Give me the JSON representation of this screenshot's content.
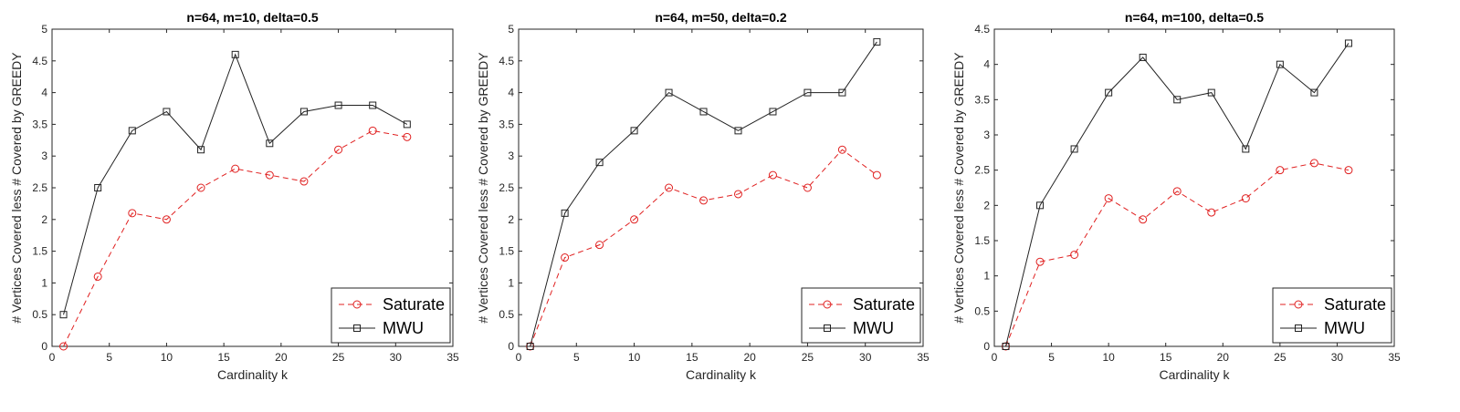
{
  "chart_data": [
    {
      "type": "line",
      "title": "n=64, m=10, delta=0.5",
      "xlabel": "Cardinality k",
      "ylabel": "# Vertices Covered less # Covered by GREEDY",
      "xlim": [
        0,
        35
      ],
      "ylim": [
        0,
        5
      ],
      "xticks": [
        0,
        5,
        10,
        15,
        20,
        25,
        30,
        35
      ],
      "yticks": [
        0,
        0.5,
        1,
        1.5,
        2,
        2.5,
        3,
        3.5,
        4,
        4.5,
        5
      ],
      "x": [
        1,
        4,
        7,
        10,
        13,
        16,
        19,
        22,
        25,
        28,
        31
      ],
      "legend_position": "bottom-right",
      "series": [
        {
          "name": "Saturate",
          "values": [
            0,
            1.1,
            2.1,
            2.0,
            2.5,
            2.8,
            2.7,
            2.6,
            3.1,
            3.4,
            3.3
          ],
          "color": "#e02020",
          "style": "dashed",
          "marker": "circle"
        },
        {
          "name": "MWU",
          "values": [
            0.5,
            2.5,
            3.4,
            3.7,
            3.1,
            4.6,
            3.2,
            3.7,
            3.8,
            3.8,
            3.5
          ],
          "color": "#222222",
          "style": "solid",
          "marker": "square"
        }
      ]
    },
    {
      "type": "line",
      "title": "n=64, m=50, delta=0.2",
      "xlabel": "Cardinality k",
      "ylabel": "# Vertices Covered less # Covered by GREEDY",
      "xlim": [
        0,
        35
      ],
      "ylim": [
        0,
        5
      ],
      "xticks": [
        0,
        5,
        10,
        15,
        20,
        25,
        30,
        35
      ],
      "yticks": [
        0,
        0.5,
        1,
        1.5,
        2,
        2.5,
        3,
        3.5,
        4,
        4.5,
        5
      ],
      "x": [
        1,
        4,
        7,
        10,
        13,
        16,
        19,
        22,
        25,
        28,
        31
      ],
      "legend_position": "bottom-right",
      "series": [
        {
          "name": "Saturate",
          "values": [
            0,
            1.4,
            1.6,
            2.0,
            2.5,
            2.3,
            2.4,
            2.7,
            2.5,
            3.1,
            2.7
          ],
          "color": "#e02020",
          "style": "dashed",
          "marker": "circle"
        },
        {
          "name": "MWU",
          "values": [
            0,
            2.1,
            2.9,
            3.4,
            4.0,
            3.7,
            3.4,
            3.7,
            4.0,
            4.0,
            4.8
          ],
          "color": "#222222",
          "style": "solid",
          "marker": "square"
        }
      ]
    },
    {
      "type": "line",
      "title": "n=64, m=100, delta=0.5",
      "xlabel": "Cardinality k",
      "ylabel": "# Vertices Covered less # Covered by GREEDY",
      "xlim": [
        0,
        35
      ],
      "ylim": [
        0,
        4.5
      ],
      "xticks": [
        0,
        5,
        10,
        15,
        20,
        25,
        30,
        35
      ],
      "yticks": [
        0,
        0.5,
        1,
        1.5,
        2,
        2.5,
        3,
        3.5,
        4,
        4.5
      ],
      "x": [
        1,
        4,
        7,
        10,
        13,
        16,
        19,
        22,
        25,
        28,
        31
      ],
      "legend_position": "bottom-right",
      "series": [
        {
          "name": "Saturate",
          "values": [
            0,
            1.2,
            1.3,
            2.1,
            1.8,
            2.2,
            1.9,
            2.1,
            2.5,
            2.6,
            2.5
          ],
          "color": "#e02020",
          "style": "dashed",
          "marker": "circle"
        },
        {
          "name": "MWU",
          "values": [
            0,
            2.0,
            2.8,
            3.6,
            4.1,
            3.5,
            3.6,
            2.8,
            4.0,
            3.6,
            4.3
          ],
          "color": "#222222",
          "style": "solid",
          "marker": "square"
        }
      ]
    }
  ]
}
